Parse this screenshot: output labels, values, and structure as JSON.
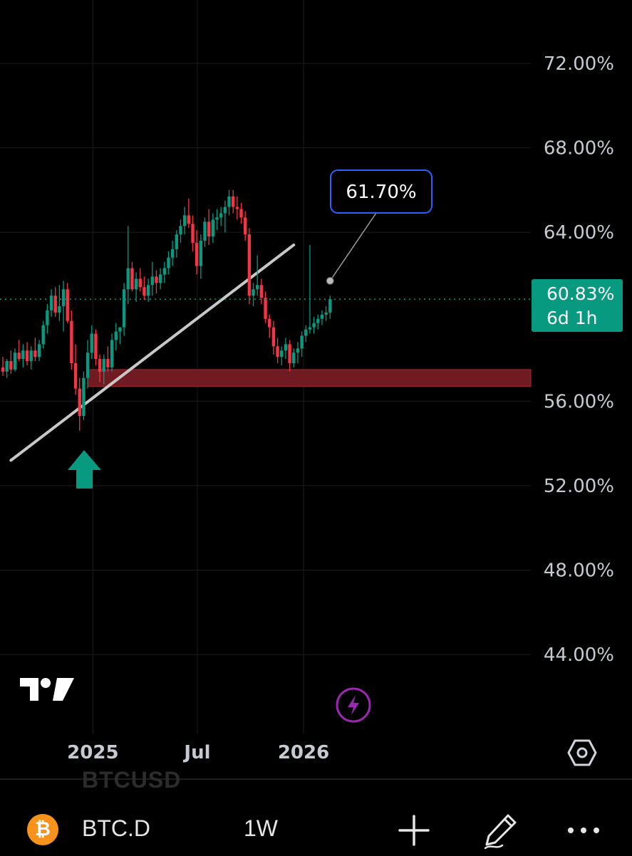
{
  "chart_data": {
    "type": "candlestick",
    "price_ticks": [
      "72.00%",
      "68.00%",
      "64.00%",
      "56.00%",
      "52.00%",
      "48.00%",
      "44.00%"
    ],
    "price_tick_values": [
      72,
      68,
      64,
      56,
      52,
      48,
      44
    ],
    "time_ticks": [
      "2025",
      "Jul",
      "2026"
    ],
    "ylim": [
      40.6,
      75
    ],
    "current_price": {
      "label": "60.83%",
      "countdown": "6d 1h",
      "value": 60.83
    },
    "annotation": {
      "label": "61.70%",
      "value": 61.7
    },
    "trendline": {
      "start": [
        "2024-08-12",
        53.2
      ],
      "end": [
        "2025-12-15",
        63.4
      ]
    },
    "support_zone": {
      "from": "2024-12-23",
      "low": 56.7,
      "high": 57.5
    },
    "candles": [
      {
        "o": 57.6,
        "h": 58.1,
        "l": 57.2,
        "c": 57.4
      },
      {
        "o": 57.4,
        "h": 58.0,
        "l": 57.1,
        "c": 57.9
      },
      {
        "o": 57.9,
        "h": 58.4,
        "l": 57.3,
        "c": 57.5
      },
      {
        "o": 57.5,
        "h": 58.5,
        "l": 57.4,
        "c": 58.3
      },
      {
        "o": 58.3,
        "h": 58.9,
        "l": 57.9,
        "c": 58.0
      },
      {
        "o": 58.0,
        "h": 58.7,
        "l": 57.6,
        "c": 58.4
      },
      {
        "o": 58.4,
        "h": 58.8,
        "l": 57.7,
        "c": 57.9
      },
      {
        "o": 57.9,
        "h": 58.6,
        "l": 57.5,
        "c": 58.4
      },
      {
        "o": 58.4,
        "h": 59.0,
        "l": 57.9,
        "c": 58.1
      },
      {
        "o": 58.1,
        "h": 58.9,
        "l": 57.9,
        "c": 58.7
      },
      {
        "o": 58.7,
        "h": 59.8,
        "l": 58.5,
        "c": 59.6
      },
      {
        "o": 59.6,
        "h": 60.6,
        "l": 59.2,
        "c": 60.3
      },
      {
        "o": 60.3,
        "h": 61.3,
        "l": 60.0,
        "c": 61.0
      },
      {
        "o": 61.0,
        "h": 61.4,
        "l": 60.0,
        "c": 60.2
      },
      {
        "o": 60.2,
        "h": 61.5,
        "l": 59.8,
        "c": 60.5
      },
      {
        "o": 60.5,
        "h": 61.7,
        "l": 59.3,
        "c": 61.3
      },
      {
        "o": 61.3,
        "h": 61.6,
        "l": 59.7,
        "c": 59.8
      },
      {
        "o": 59.8,
        "h": 60.3,
        "l": 57.5,
        "c": 57.8
      },
      {
        "o": 57.8,
        "h": 58.7,
        "l": 56.3,
        "c": 56.6
      },
      {
        "o": 56.6,
        "h": 57.1,
        "l": 54.6,
        "c": 55.3
      },
      {
        "o": 55.3,
        "h": 57.4,
        "l": 55.1,
        "c": 57.1
      },
      {
        "o": 57.1,
        "h": 58.9,
        "l": 56.6,
        "c": 58.3
      },
      {
        "o": 58.3,
        "h": 59.6,
        "l": 58.0,
        "c": 59.2
      },
      {
        "o": 59.2,
        "h": 59.4,
        "l": 57.7,
        "c": 58.0
      },
      {
        "o": 58.0,
        "h": 58.2,
        "l": 56.9,
        "c": 57.4
      },
      {
        "o": 57.4,
        "h": 58.2,
        "l": 56.8,
        "c": 58.0
      },
      {
        "o": 58.0,
        "h": 58.6,
        "l": 57.4,
        "c": 57.6
      },
      {
        "o": 57.6,
        "h": 59.2,
        "l": 57.4,
        "c": 58.9
      },
      {
        "o": 58.9,
        "h": 59.7,
        "l": 58.4,
        "c": 59.3
      },
      {
        "o": 59.3,
        "h": 59.5,
        "l": 58.7,
        "c": 59.5
      },
      {
        "o": 59.5,
        "h": 61.6,
        "l": 59.1,
        "c": 61.3
      },
      {
        "o": 61.3,
        "h": 64.3,
        "l": 60.6,
        "c": 62.3
      },
      {
        "o": 62.3,
        "h": 62.6,
        "l": 61.2,
        "c": 61.3
      },
      {
        "o": 61.3,
        "h": 62.1,
        "l": 60.7,
        "c": 61.8
      },
      {
        "o": 61.8,
        "h": 62.3,
        "l": 61.2,
        "c": 61.4
      },
      {
        "o": 61.4,
        "h": 61.9,
        "l": 60.8,
        "c": 61.0
      },
      {
        "o": 61.0,
        "h": 61.8,
        "l": 60.7,
        "c": 61.5
      },
      {
        "o": 61.5,
        "h": 62.6,
        "l": 61.0,
        "c": 61.9
      },
      {
        "o": 61.9,
        "h": 62.2,
        "l": 61.1,
        "c": 61.6
      },
      {
        "o": 61.6,
        "h": 62.3,
        "l": 61.3,
        "c": 62.0
      },
      {
        "o": 62.0,
        "h": 62.6,
        "l": 61.6,
        "c": 62.3
      },
      {
        "o": 62.3,
        "h": 63.1,
        "l": 62.0,
        "c": 62.8
      },
      {
        "o": 62.8,
        "h": 63.6,
        "l": 62.4,
        "c": 63.2
      },
      {
        "o": 63.2,
        "h": 64.1,
        "l": 62.8,
        "c": 63.9
      },
      {
        "o": 63.9,
        "h": 64.6,
        "l": 63.5,
        "c": 64.3
      },
      {
        "o": 64.3,
        "h": 65.2,
        "l": 63.9,
        "c": 64.8
      },
      {
        "o": 64.8,
        "h": 65.6,
        "l": 64.2,
        "c": 64.4
      },
      {
        "o": 64.4,
        "h": 64.8,
        "l": 63.1,
        "c": 63.5
      },
      {
        "o": 63.5,
        "h": 64.1,
        "l": 62.0,
        "c": 62.4
      },
      {
        "o": 62.4,
        "h": 63.9,
        "l": 61.8,
        "c": 63.6
      },
      {
        "o": 63.6,
        "h": 64.7,
        "l": 63.3,
        "c": 64.5
      },
      {
        "o": 64.5,
        "h": 65.1,
        "l": 63.4,
        "c": 63.8
      },
      {
        "o": 63.8,
        "h": 64.9,
        "l": 63.5,
        "c": 64.6
      },
      {
        "o": 64.6,
        "h": 65.1,
        "l": 64.1,
        "c": 64.7
      },
      {
        "o": 64.7,
        "h": 65.2,
        "l": 64.3,
        "c": 64.9
      },
      {
        "o": 64.9,
        "h": 65.5,
        "l": 64.0,
        "c": 65.2
      },
      {
        "o": 65.2,
        "h": 66.0,
        "l": 64.8,
        "c": 65.7
      },
      {
        "o": 65.7,
        "h": 66.0,
        "l": 64.9,
        "c": 65.2
      },
      {
        "o": 65.2,
        "h": 65.7,
        "l": 64.6,
        "c": 65.1
      },
      {
        "o": 65.1,
        "h": 65.4,
        "l": 64.4,
        "c": 64.7
      },
      {
        "o": 64.7,
        "h": 65.0,
        "l": 63.6,
        "c": 63.9
      },
      {
        "o": 63.9,
        "h": 64.2,
        "l": 60.6,
        "c": 61.0
      },
      {
        "o": 61.0,
        "h": 61.6,
        "l": 60.5,
        "c": 61.3
      },
      {
        "o": 61.3,
        "h": 62.9,
        "l": 61.0,
        "c": 61.5
      },
      {
        "o": 61.5,
        "h": 61.8,
        "l": 60.6,
        "c": 60.9
      },
      {
        "o": 60.9,
        "h": 61.2,
        "l": 59.7,
        "c": 59.9
      },
      {
        "o": 59.9,
        "h": 60.1,
        "l": 59.0,
        "c": 59.5
      },
      {
        "o": 59.5,
        "h": 59.8,
        "l": 58.2,
        "c": 58.6
      },
      {
        "o": 58.6,
        "h": 59.0,
        "l": 57.8,
        "c": 58.1
      },
      {
        "o": 58.1,
        "h": 58.6,
        "l": 57.7,
        "c": 58.4
      },
      {
        "o": 58.4,
        "h": 59.0,
        "l": 58.0,
        "c": 58.7
      },
      {
        "o": 58.7,
        "h": 58.9,
        "l": 57.4,
        "c": 57.8
      },
      {
        "o": 57.8,
        "h": 58.5,
        "l": 57.6,
        "c": 58.3
      },
      {
        "o": 58.3,
        "h": 58.8,
        "l": 57.8,
        "c": 58.5
      },
      {
        "o": 58.5,
        "h": 59.3,
        "l": 58.1,
        "c": 59.1
      },
      {
        "o": 59.1,
        "h": 59.6,
        "l": 58.8,
        "c": 59.4
      },
      {
        "o": 59.4,
        "h": 63.4,
        "l": 59.2,
        "c": 59.5
      },
      {
        "o": 59.5,
        "h": 60.0,
        "l": 59.2,
        "c": 59.7
      },
      {
        "o": 59.7,
        "h": 60.1,
        "l": 59.4,
        "c": 59.9
      },
      {
        "o": 59.9,
        "h": 60.3,
        "l": 59.6,
        "c": 60.1
      },
      {
        "o": 60.1,
        "h": 60.5,
        "l": 59.8,
        "c": 60.2
      },
      {
        "o": 60.2,
        "h": 61.0,
        "l": 59.9,
        "c": 60.83
      }
    ]
  },
  "toolbar": {
    "symbol": "BTC.D",
    "interval": "1W",
    "ghost_symbol": "BTCUSD",
    "coin_glyph": "₿"
  },
  "colors": {
    "up": "#089981",
    "down": "#f23645",
    "zone": "#701a22",
    "trendline": "#c8c8c8",
    "callout_border": "#2962ff",
    "current_price_bg": "#089981",
    "accent_purple": "#9c27b0"
  },
  "icons": [
    "tradingview-logo-icon",
    "flash-icon",
    "settings-hex-icon",
    "plus-icon",
    "pencil-icon",
    "more-dots-icon"
  ]
}
